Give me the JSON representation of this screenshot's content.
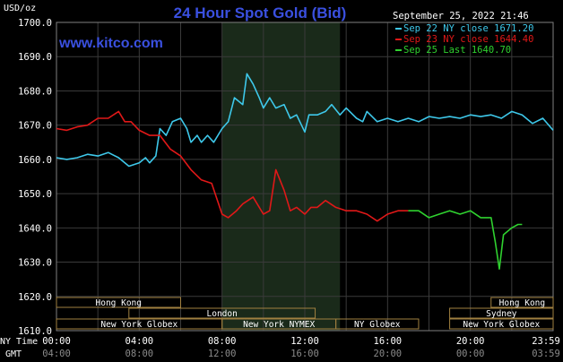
{
  "chart_data": {
    "type": "line",
    "title": "24 Hour Spot Gold (Bid)",
    "watermark": "www.kitco.com",
    "ylabel": "USD/oz",
    "timestamp": "September 25, 2022 21:46",
    "ylim": [
      1610,
      1700
    ],
    "yticks": [
      "1700.0",
      "1690.0",
      "1680.0",
      "1670.0",
      "1660.0",
      "1650.0",
      "1640.0",
      "1630.0",
      "1620.0",
      "1610.0"
    ],
    "xlim": [
      0,
      24
    ],
    "ny_time_label": "NY Time",
    "gmt_label": "GMT",
    "x_ticks_ny": [
      "00:00",
      "04:00",
      "08:00",
      "12:00",
      "16:00",
      "20:00",
      "23:59"
    ],
    "x_ticks_gmt": [
      "04:00",
      "08:00",
      "12:00",
      "16:00",
      "20:00",
      "00:00",
      "03:59"
    ],
    "highlight_band": [
      8,
      13.7
    ],
    "grid": true,
    "legend_position": "top-right",
    "series": [
      {
        "name": "Sep 22 NY close 1671.20",
        "color": "#3ec8ea",
        "points": [
          [
            0,
            1660.5
          ],
          [
            0.5,
            1660
          ],
          [
            1,
            1660.5
          ],
          [
            1.5,
            1661.5
          ],
          [
            2,
            1661
          ],
          [
            2.5,
            1662
          ],
          [
            3,
            1660.5
          ],
          [
            3.5,
            1658
          ],
          [
            4,
            1659
          ],
          [
            4.3,
            1660.5
          ],
          [
            4.5,
            1659
          ],
          [
            4.8,
            1661
          ],
          [
            5,
            1669
          ],
          [
            5.3,
            1667
          ],
          [
            5.6,
            1671
          ],
          [
            6,
            1672
          ],
          [
            6.3,
            1669
          ],
          [
            6.5,
            1665
          ],
          [
            6.8,
            1667
          ],
          [
            7,
            1665
          ],
          [
            7.3,
            1667
          ],
          [
            7.6,
            1665
          ],
          [
            8,
            1669
          ],
          [
            8.3,
            1671
          ],
          [
            8.6,
            1678
          ],
          [
            9,
            1676
          ],
          [
            9.2,
            1685
          ],
          [
            9.5,
            1682
          ],
          [
            9.8,
            1678
          ],
          [
            10,
            1675
          ],
          [
            10.3,
            1678
          ],
          [
            10.6,
            1675
          ],
          [
            11,
            1676
          ],
          [
            11.3,
            1672
          ],
          [
            11.6,
            1673
          ],
          [
            12,
            1668
          ],
          [
            12.2,
            1673
          ],
          [
            12.6,
            1673
          ],
          [
            13,
            1674
          ],
          [
            13.3,
            1676
          ],
          [
            13.7,
            1673
          ],
          [
            14,
            1675
          ],
          [
            14.5,
            1672
          ],
          [
            14.8,
            1671
          ],
          [
            15,
            1674
          ],
          [
            15.5,
            1671
          ],
          [
            16,
            1672
          ],
          [
            16.5,
            1671
          ],
          [
            17,
            1672
          ],
          [
            17.5,
            1671
          ],
          [
            18,
            1672.5
          ],
          [
            18.5,
            1672
          ],
          [
            19,
            1672.5
          ],
          [
            19.5,
            1672
          ],
          [
            20,
            1673
          ],
          [
            20.5,
            1672.5
          ],
          [
            21,
            1673
          ],
          [
            21.5,
            1672
          ],
          [
            22,
            1674
          ],
          [
            22.5,
            1673
          ],
          [
            23,
            1670.5
          ],
          [
            23.5,
            1672
          ],
          [
            24,
            1668.5
          ]
        ]
      },
      {
        "name": "Sep 23 NY close 1644.40",
        "color": "#e01818",
        "points": [
          [
            0,
            1669
          ],
          [
            0.5,
            1668.5
          ],
          [
            1,
            1669.5
          ],
          [
            1.5,
            1670
          ],
          [
            2,
            1672
          ],
          [
            2.5,
            1672
          ],
          [
            3,
            1674
          ],
          [
            3.3,
            1671
          ],
          [
            3.6,
            1671
          ],
          [
            4,
            1668.5
          ],
          [
            4.5,
            1667
          ],
          [
            5,
            1667
          ],
          [
            5.5,
            1663
          ],
          [
            6,
            1661
          ],
          [
            6.5,
            1657
          ],
          [
            7,
            1654
          ],
          [
            7.5,
            1653
          ],
          [
            8,
            1644
          ],
          [
            8.3,
            1643
          ],
          [
            8.7,
            1645
          ],
          [
            9,
            1647
          ],
          [
            9.5,
            1649
          ],
          [
            10,
            1644
          ],
          [
            10.3,
            1645
          ],
          [
            10.6,
            1657
          ],
          [
            11,
            1651
          ],
          [
            11.3,
            1645
          ],
          [
            11.6,
            1646
          ],
          [
            12,
            1644
          ],
          [
            12.3,
            1646
          ],
          [
            12.6,
            1646
          ],
          [
            13,
            1648
          ],
          [
            13.5,
            1646
          ],
          [
            14,
            1645
          ],
          [
            14.5,
            1645
          ],
          [
            15,
            1644
          ],
          [
            15.5,
            1642
          ],
          [
            16,
            1644
          ],
          [
            16.5,
            1645
          ],
          [
            17,
            1645
          ]
        ]
      },
      {
        "name": "Sep 25 Last 1640.70",
        "color": "#2fd12f",
        "points": [
          [
            17,
            1645
          ],
          [
            17.5,
            1645
          ],
          [
            18,
            1643
          ],
          [
            18.5,
            1644
          ],
          [
            19,
            1645
          ],
          [
            19.5,
            1644
          ],
          [
            20,
            1645
          ],
          [
            20.5,
            1643
          ],
          [
            21,
            1643
          ],
          [
            21.2,
            1636
          ],
          [
            21.4,
            1628
          ],
          [
            21.6,
            1638
          ],
          [
            22,
            1640
          ],
          [
            22.3,
            1641
          ],
          [
            22.5,
            1641
          ]
        ]
      }
    ],
    "sessions_row1": [
      {
        "label": "Hong Kong",
        "start": 0,
        "end": 6
      },
      {
        "label": "Hong Kong",
        "start": 21,
        "end": 24
      }
    ],
    "sessions_row2": [
      {
        "label": "London",
        "start": 3.5,
        "end": 12.5
      },
      {
        "label": "Sydney",
        "start": 19,
        "end": 24
      }
    ],
    "sessions_row3": [
      {
        "label": "New York Globex",
        "start": 0,
        "end": 8
      },
      {
        "label": "New York NYMEX",
        "start": 8,
        "end": 13.5
      },
      {
        "label": "NY Globex",
        "start": 13.5,
        "end": 17.5
      },
      {
        "label": "New York Globex",
        "start": 19,
        "end": 24
      }
    ]
  }
}
